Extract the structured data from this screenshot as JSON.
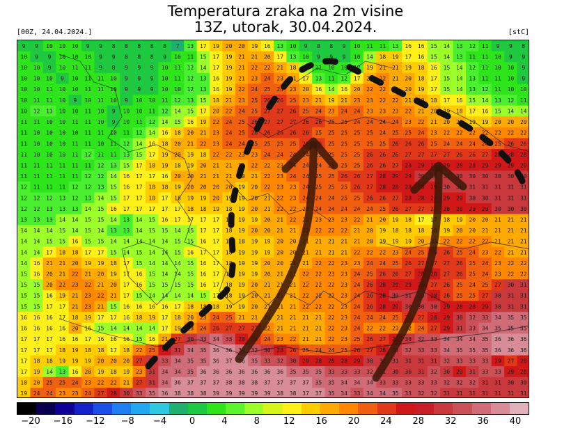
{
  "title_line1": "Temperatura zraka na 2m visine",
  "title_line2": "13Z, utorak, 30.04.2024.",
  "run_label": "[00Z, 24.04.2024.]",
  "unit_label": "[stC]",
  "legend": {
    "colors": [
      "#000000",
      "#08004e",
      "#0f0096",
      "#1522c8",
      "#1b4fe6",
      "#1f7ff0",
      "#22a8f0",
      "#2fc8e0",
      "#1fb070",
      "#1ec840",
      "#2ee41a",
      "#5af52a",
      "#9cff2a",
      "#d6f51a",
      "#fff01a",
      "#ffcc00",
      "#ffaa00",
      "#ff8800",
      "#f06010",
      "#e03818",
      "#d01818",
      "#c81e2a",
      "#c8383c",
      "#cc5058",
      "#d06c78",
      "#d88c98",
      "#e0b0bc"
    ],
    "tick_labels": [
      "−20",
      "−16",
      "−12",
      "−8",
      "−4",
      "0",
      "4",
      "8",
      "12",
      "16",
      "20",
      "24",
      "28",
      "32",
      "36",
      "40"
    ]
  },
  "map": {
    "grid_rows": [
      "9 9 10 10 10 9 9 8 8 8 8 8 7 13 17 19 20 20 19 16 13 10 9 8 8 9 10 11 11 13 16 16 15 14 13 12 11 9 9 8",
      "10 9 9 10 10 10 9 9 8 8 8 9 10 11 15 17 19 21 21 20 17 13 10 9 9 9 10 14 18 19 17 16 15 14 13 11 11 10 9 9",
      "10 10 9 10 11 11 9 8 9 9 9 10 11 12 14 17 19 21 22 22 21 18 14 11 10 10 12 19 21 21 19 18 16 15 14 12 11 10 10 9",
      "10 10 10 9 10 11 11 10 9 9 9 10 11 12 13 16 19 21 23 24 23 21 17 13 11 12 17 21 22 21 20 18 17 15 14 13 11 11 10 9",
      "10 10 11 10 10 11 11 10 9 9 9 10 10 12 13 16 19 22 24 25 24 23 20 16 14 16 20 22 22 21 20 19 17 15 14 13 12 11 10 10",
      "10 11 11 10 9 10 11 10 9 10 10 11 12 13 15 18 21 23 25 26 26 25 23 21 19 21 23 23 22 22 21 20 18 17 16 15 14 13 12 11",
      "10 12 13 10 10 11 10 9 10 10 11 12 14 15 17 20 22 24 25 27 27 26 25 24 23 24 24 23 23 23 22 21 20 19 18 17 16 15 14 14",
      "11 11 10 10 11 11 10 9 10 11 12 14 15 16 19 22 24 25 26 27 27 27 26 26 25 25 24 24 24 24 23 22 21 20 20 19 19 20 20 20",
      "11 10 10 10 10 11 11 10 11 12 14 16 18 20 21 23 24 25 26 26 26 26 26 25 25 25 25 25 24 25 25 24 23 22 22 22 22 22 22 22",
      "11 10 10 10 11 11 10 11 12 14 16 18 20 21 22 23 24 24 25 25 25 25 26 26 25 25 25 25 25 26 26 26 25 24 24 24 24 25 26 26",
      "11 10 10 10 11 12 11 11 13 15 17 19 20 19 18 22 22 23 23 24 24 24 24 25 25 25 25 26 26 26 27 27 27 27 26 26 27 28 28 28",
      "11 11 11 11 11 11 12 13 15 17 18 19 18 19 20 21 21 21 22 22 23 24 24 24 25 25 25 26 26 27 28 29 29 29 28 28 29 29 29 29",
      "11 11 11 11 11 12 12 14 16 17 17 16 20 20 21 21 21 20 21 22 23 24 24 25 25 26 26 27 28 29 29 30 30 31 30 30 30 30 30 30",
      "12 11 11 11 12 12 13 15 16 17 18 18 19 20 20 20 20 19 20 22 23 23 24 25 25 25 26 27 28 28 28 28 29 30 30 31 31 31 31 31",
      "12 12 12 13 12 13 14 15 17 17 18 17 18 19 19 20 19 19 20 21 22 23 24 24 24 25 25 26 26 27 28 28 28 29 29 30 30 31 31 31",
      "12 12 13 13 13 14 15 16 17 17 17 17 17 18 18 19 18 19 20 21 22 22 23 24 24 24 24 24 25 26 27 27 27 28 28 29 29 30 30 30",
      "13 13 13 14 14 15 15 14 13 14 15 16 17 17 17 17 18 19 19 20 21 22 22 23 23 23 22 21 20 19 18 17 17 18 19 20 20 21 21 21",
      "14 14 14 15 14 15 14 13 13 14 15 15 14 15 17 17 18 19 20 20 21 21 22 22 22 22 21 20 19 18 18 18 18 19 20 20 21 21 21 21",
      "14 14 15 15 16 15 15 14 14 14 14 14 15 15 16 17 18 18 19 19 20 20 21 21 21 21 21 20 19 19 19 20 21 22 22 22 22 21 21 21",
      "14 14 17 18 18 17 17 15 14 15 14 14 15 16 17 17 18 19 19 19 20 20 21 21 21 21 22 22 22 23 24 25 26 26 25 24 23 22 21 21",
      "14 16 21 21 20 19 19 18 17 15 14 14 14 15 16 17 18 19 19 20 20 21 21 22 22 23 23 24 24 25 26 27 27 27 26 25 24 23 22 22",
      "15 16 20 21 22 21 20 19 17 16 15 14 14 15 16 17 18 19 19 20 21 21 22 22 23 23 24 25 26 26 27 28 28 27 26 25 24 23 22 22",
      "15 15 20 22 23 22 21 20 17 16 15 15 15 15 16 17 18 19 20 21 21 21 22 22 22 23 24 26 28 29 29 28 27 26 25 24 25 27 30 31",
      "15 15 16 19 21 23 22 21 17 15 14 14 14 14 15 17 18 19 20 21 21 21 22 22 22 23 24 26 28 30 31 30 28 26 25 25 27 30 31 31",
      "15 15 17 17 21 23 21 15 16 16 16 16 17 18 18 18 19 19 20 21 21 21 22 22 22 23 24 26 28 29 30 30 30 29 28 28 29 30 31 31",
      "16 16 16 17 18 19 17 17 16 18 19 17 18 20 23 24 25 21 21 20 21 21 21 21 22 23 24 24 24 25 26 27 28 29 30 32 33 34 35 35",
      "16 16 16 16 20 16 15 14 14 14 14 17 19 23 24 26 27 27 27 22 21 21 21 21 22 23 24 22 22 23 22 24 27 29 31 33 34 35 35 35",
      "17 17 17 16 16 17 16 16 16 15 16 21 27 30 33 34 33 28 26 24 23 22 21 21 22 23 25 26 27 28 30 32 33 34 34 34 35 36 36 36",
      "17 17 17 18 19 18 18 17 18 22 25 29 31 34 35 36 36 34 32 30 28 26 25 24 24 25 26 27 28 30 32 33 33 34 35 35 35 36 36 36",
      "17 18 18 19 19 19 20 20 20 27 30 33 34 35 35 36 37 36 35 33 32 30 29 28 28 28 29 30 31 31 31 31 31 32 33 33 33 29 27 28",
      "17 19 14 13 16 20 19 18 19 23 31 34 34 35 36 36 36 36 36 36 36 35 35 35 33 33 33 32 31 30 30 31 32 30 29 31 33 33 29 28",
      "18 20 25 25 24 23 22 22 21 27 31 34 36 37 37 37 38 38 38 37 37 37 37 35 35 34 34 34 33 33 33 33 33 32 32 32 31 31 30 30",
      "19 24 24 23 23 24 27 28 30 33 35 36 38 38 38 39 39 39 39 39 38 38 37 37 35 34 33 34 34 35 33 32 32 31 31 31 31 31 31 31"
    ],
    "arrow_color": "#3a1808",
    "dash_color": "#111111"
  }
}
